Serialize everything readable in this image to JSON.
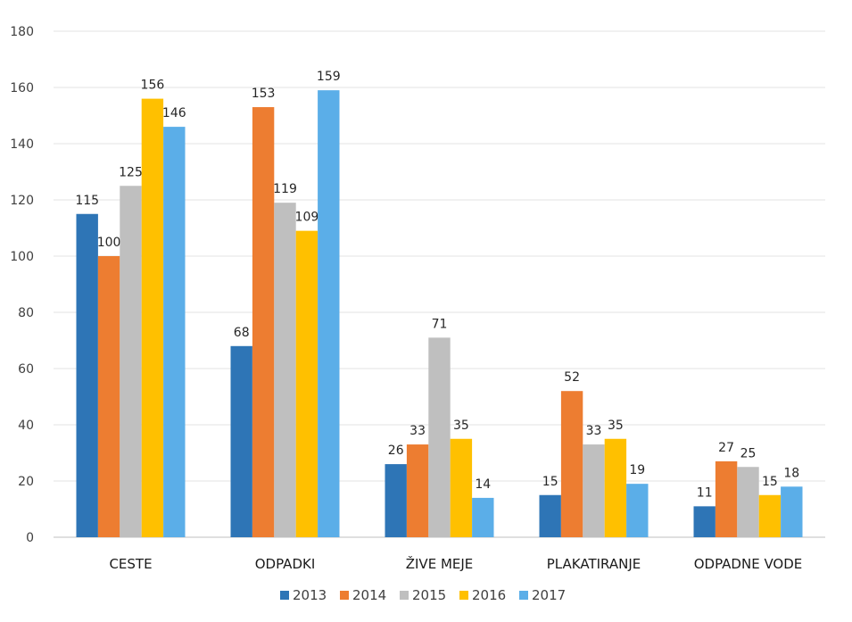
{
  "chart_data": {
    "type": "bar",
    "title": "",
    "xlabel": "",
    "ylabel": "",
    "ylim": [
      0,
      180
    ],
    "yticks": [
      0,
      20,
      40,
      60,
      80,
      100,
      120,
      140,
      160,
      180
    ],
    "grid": true,
    "legend_position": "bottom",
    "categories": [
      "CESTE",
      "ODPADKI",
      "ŽIVE MEJE",
      "PLAKATIRANJE",
      "ODPADNE VODE"
    ],
    "series": [
      {
        "name": "2013",
        "color": "#2e75b6",
        "values": [
          115,
          68,
          26,
          15,
          11
        ]
      },
      {
        "name": "2014",
        "color": "#ed7d31",
        "values": [
          100,
          153,
          33,
          52,
          27
        ]
      },
      {
        "name": "2015",
        "color": "#bfbfbf",
        "values": [
          125,
          119,
          71,
          33,
          25
        ]
      },
      {
        "name": "2016",
        "color": "#ffc000",
        "values": [
          156,
          109,
          35,
          35,
          15
        ]
      },
      {
        "name": "2017",
        "color": "#5baee8",
        "values": [
          146,
          159,
          14,
          19,
          18
        ]
      }
    ]
  }
}
